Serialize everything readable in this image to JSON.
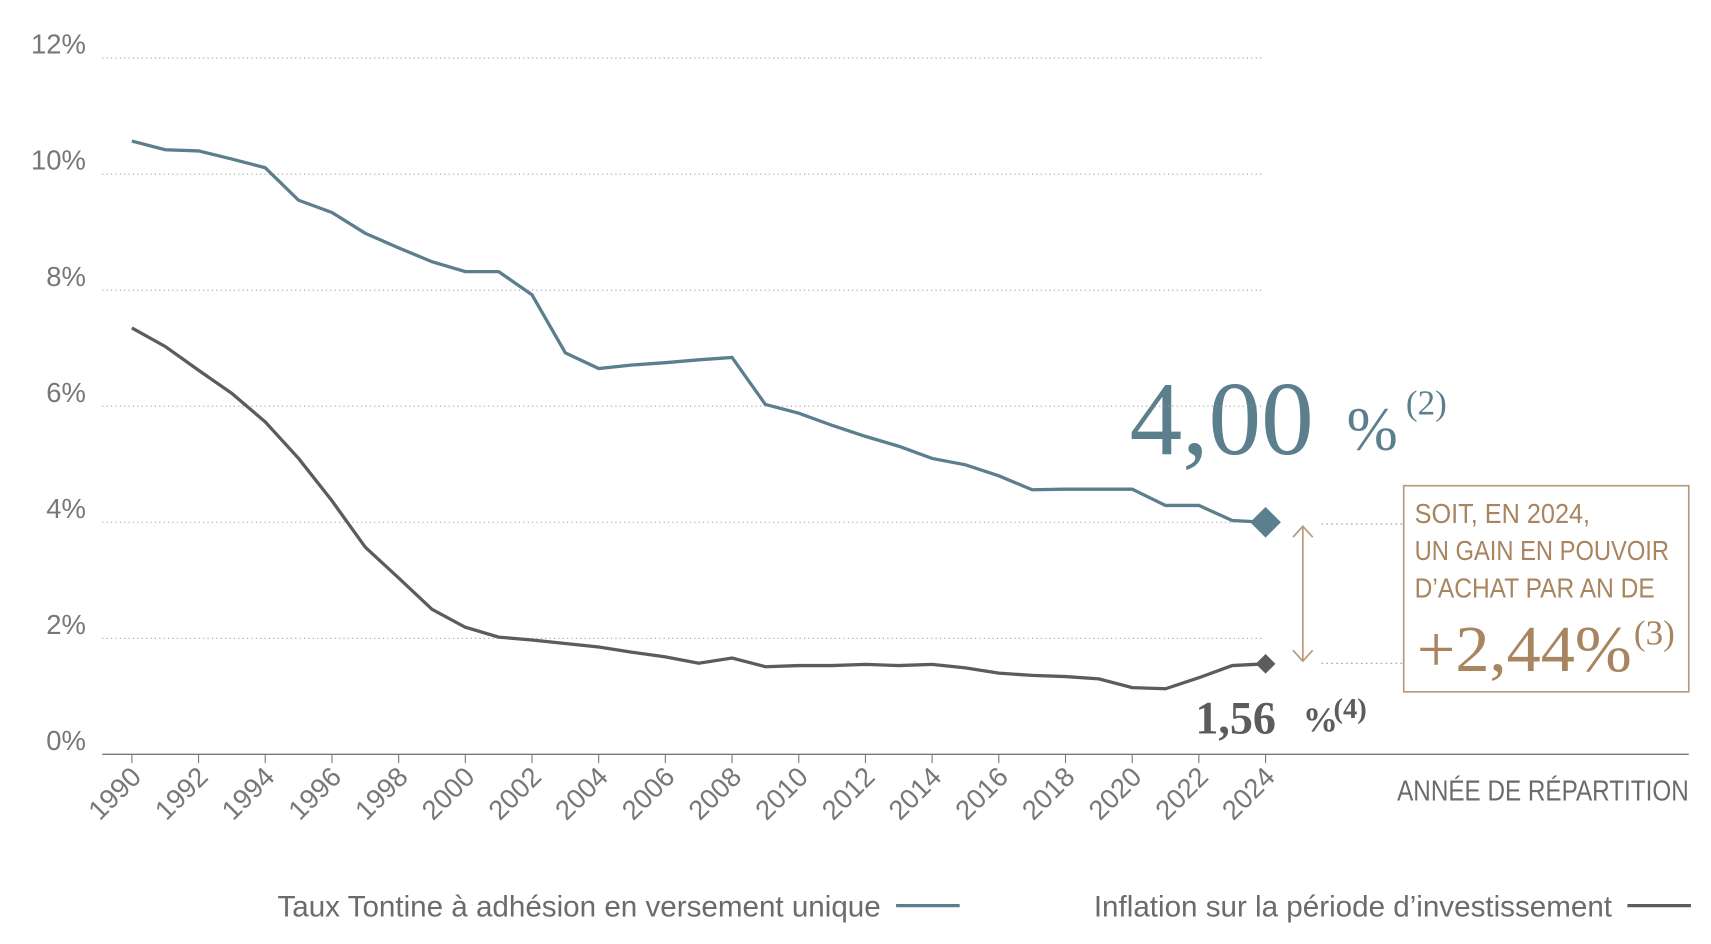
{
  "chart_data": {
    "type": "line",
    "x_label": "ANNÉE DE RÉPARTITION",
    "x": [
      1990,
      1991,
      1992,
      1993,
      1994,
      1995,
      1996,
      1997,
      1998,
      1999,
      2000,
      2001,
      2002,
      2003,
      2004,
      2005,
      2006,
      2007,
      2008,
      2009,
      2010,
      2011,
      2012,
      2013,
      2014,
      2015,
      2016,
      2017,
      2018,
      2019,
      2020,
      2021,
      2022,
      2023,
      2024
    ],
    "series": [
      {
        "name": "Taux Tontine à adhésion en versement unique",
        "color": "#5b7f8d",
        "values": [
          10.57,
          10.42,
          10.4,
          10.26,
          10.11,
          9.55,
          9.34,
          8.98,
          8.73,
          8.49,
          8.32,
          8.32,
          7.92,
          6.92,
          6.65,
          6.71,
          6.75,
          6.8,
          6.84,
          6.03,
          5.88,
          5.67,
          5.48,
          5.31,
          5.1,
          4.99,
          4.8,
          4.56,
          4.57,
          4.57,
          4.57,
          4.29,
          4.29,
          4.03,
          4.0
        ]
      },
      {
        "name": "Inflation sur la période d’investissement",
        "color": "#5c5c5c",
        "values": [
          7.35,
          7.03,
          6.62,
          6.22,
          5.73,
          5.1,
          4.37,
          3.57,
          3.04,
          2.5,
          2.19,
          2.02,
          1.97,
          1.91,
          1.85,
          1.76,
          1.68,
          1.57,
          1.66,
          1.51,
          1.53,
          1.53,
          1.55,
          1.53,
          1.55,
          1.49,
          1.4,
          1.36,
          1.34,
          1.3,
          1.15,
          1.13,
          1.32,
          1.53,
          1.56
        ]
      }
    ],
    "xlim": [
      1990,
      2024
    ],
    "xticks": [
      1990,
      1992,
      1994,
      1996,
      1998,
      2000,
      2002,
      2004,
      2006,
      2008,
      2010,
      2012,
      2014,
      2016,
      2018,
      2020,
      2022,
      2024
    ],
    "ylim": [
      0,
      12
    ],
    "yticks": [
      {
        "value": 0,
        "label": "0%"
      },
      {
        "value": 2,
        "label": "2%"
      },
      {
        "value": 4,
        "label": "4%"
      },
      {
        "value": 6,
        "label": "6%"
      },
      {
        "value": 8,
        "label": "8%"
      },
      {
        "value": 10,
        "label": "10%"
      },
      {
        "value": 12,
        "label": "12%"
      }
    ],
    "grid": true,
    "annotations": {
      "tontine_rate": {
        "number": "4,00",
        "unit": "%",
        "note": "(2)"
      },
      "inflation_rate": {
        "number": "1,56",
        "unit": "%",
        "note": "(4)"
      },
      "gain_box": {
        "lines": [
          "SOIT, EN 2024,",
          "UN GAIN EN POUVOIR",
          "D’ACHAT PAR AN DE"
        ],
        "number": "+2,44%",
        "note": "(3)"
      }
    }
  }
}
